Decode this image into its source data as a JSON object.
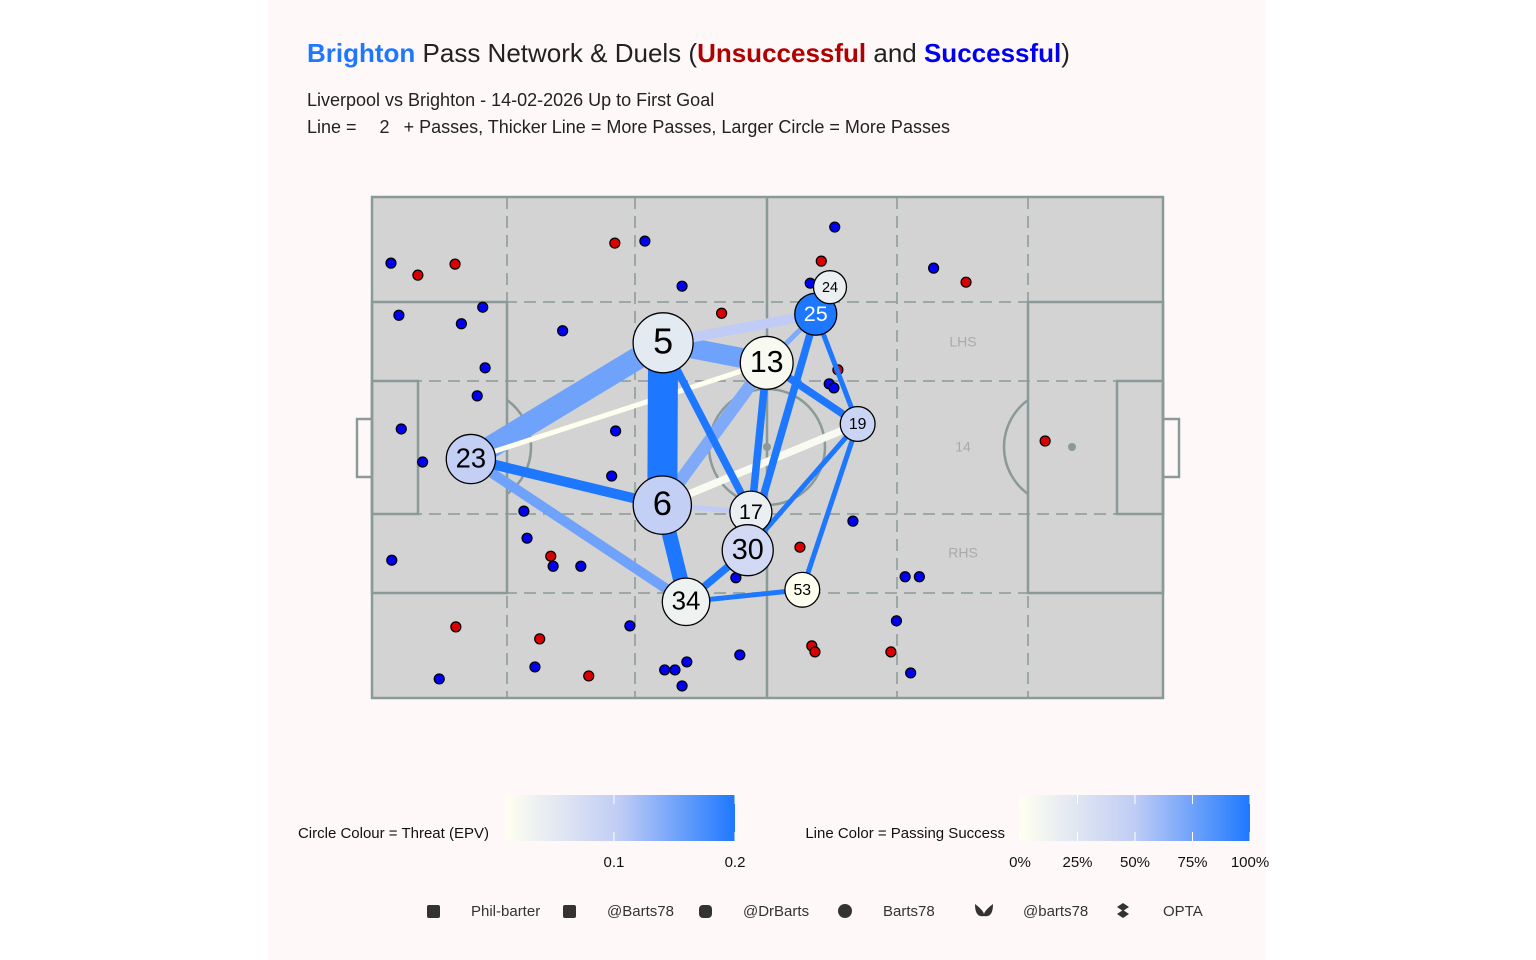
{
  "chart_data": {
    "type": "pass-network",
    "title": {
      "team": "Brighton",
      "team_color": "#1e78ff",
      "part1": " Pass Network & Duels (",
      "part2": " and ",
      "part3": ")"
    },
    "subtitle": "Liverpool vs Brighton - 14-02-2026 Up to First Goal",
    "note": {
      "before": "Line = ",
      "min_passes": 2,
      "after": "+ Passes, Thicker Line = More Passes, Larger Circle = More Passes"
    },
    "xlim": [
      0,
      100
    ],
    "ylim": [
      0,
      100
    ],
    "pitch_labels": [
      "LHS",
      "14",
      "RHS"
    ],
    "series": [
      {
        "name": "Unsuccessful",
        "color": "#d80000",
        "title_color": "#b00000",
        "x": [
          5.8,
          10.5,
          30.7,
          44.2,
          56.8,
          75.1,
          58.9,
          85.1,
          22.6,
          54.1,
          10.6,
          21.2,
          27.4,
          55.6,
          56.0,
          65.6
        ],
        "y": [
          15.6,
          13.4,
          9.2,
          23.2,
          12.8,
          17.0,
          34.5,
          48.7,
          71.7,
          69.9,
          85.8,
          88.2,
          95.6,
          89.6,
          90.8,
          90.8
        ]
      },
      {
        "name": "Successful",
        "color": "#0000ee",
        "title_color": "#0000ee",
        "x": [
          2.4,
          3.4,
          11.3,
          14.0,
          24.1,
          34.5,
          39.2,
          58.5,
          55.4,
          71.0,
          14.3,
          13.3,
          3.7,
          6.4,
          30.8,
          30.3,
          57.8,
          58.4,
          19.2,
          19.6,
          22.9,
          26.4,
          2.5,
          60.8,
          46.0,
          67.4,
          69.2,
          32.6,
          66.3,
          46.5,
          20.6,
          37.0,
          38.3,
          39.8,
          39.2,
          68.1,
          8.5
        ],
        "y": [
          13.2,
          23.6,
          25.3,
          22.0,
          26.7,
          8.8,
          17.8,
          6.0,
          17.2,
          14.2,
          34.1,
          39.7,
          46.3,
          52.9,
          46.7,
          55.7,
          37.3,
          38.1,
          62.7,
          68.1,
          73.7,
          73.7,
          72.5,
          64.7,
          76.0,
          75.8,
          75.8,
          85.6,
          84.6,
          91.4,
          93.8,
          94.4,
          94.4,
          92.8,
          97.6,
          95.0,
          96.2
        ]
      }
    ],
    "nodes": [
      {
        "label": "5",
        "x": 36.8,
        "y": 29.1,
        "passes": 40,
        "epv": 0.05
      },
      {
        "label": "13",
        "x": 49.9,
        "y": 33.1,
        "passes": 32,
        "epv": 0.02
      },
      {
        "label": "25",
        "x": 56.1,
        "y": 23.4,
        "passes": 20,
        "epv": 0.2
      },
      {
        "label": "24",
        "x": 57.9,
        "y": 18.0,
        "passes": 10,
        "epv": 0.04
      },
      {
        "label": "19",
        "x": 61.4,
        "y": 45.3,
        "passes": 12,
        "epv": 0.09
      },
      {
        "label": "23",
        "x": 12.5,
        "y": 52.3,
        "passes": 28,
        "epv": 0.1
      },
      {
        "label": "6",
        "x": 36.7,
        "y": 61.5,
        "passes": 38,
        "epv": 0.1
      },
      {
        "label": "17",
        "x": 47.9,
        "y": 62.9,
        "passes": 20,
        "epv": 0.04
      },
      {
        "label": "30",
        "x": 47.5,
        "y": 70.5,
        "passes": 30,
        "epv": 0.08
      },
      {
        "label": "34",
        "x": 39.7,
        "y": 80.8,
        "passes": 26,
        "epv": 0.035
      },
      {
        "label": "53",
        "x": 54.4,
        "y": 78.4,
        "passes": 12,
        "epv": 0.01
      }
    ],
    "edges": [
      {
        "from": "5",
        "to": "23",
        "passes": 9,
        "success": 75
      },
      {
        "from": "5",
        "to": "13",
        "passes": 8,
        "success": 75
      },
      {
        "from": "5",
        "to": "25",
        "passes": 4,
        "success": 50
      },
      {
        "from": "23",
        "to": "13",
        "passes": 2,
        "success": 0
      },
      {
        "from": "6",
        "to": "19",
        "passes": 3,
        "success": 5
      },
      {
        "from": "23",
        "to": "34",
        "passes": 4,
        "success": 75
      },
      {
        "from": "6",
        "to": "13",
        "passes": 5,
        "success": 70
      },
      {
        "from": "6",
        "to": "17",
        "passes": 2,
        "success": 50
      },
      {
        "from": "13",
        "to": "25",
        "passes": 2,
        "success": 70
      },
      {
        "from": "25",
        "to": "24",
        "passes": 2,
        "success": 50
      },
      {
        "from": "17",
        "to": "30",
        "passes": 2,
        "success": 50
      },
      {
        "from": "5",
        "to": "6",
        "passes": 12,
        "success": 100
      },
      {
        "from": "5",
        "to": "17",
        "passes": 3,
        "success": 100
      },
      {
        "from": "23",
        "to": "6",
        "passes": 4,
        "success": 100
      },
      {
        "from": "6",
        "to": "34",
        "passes": 6,
        "success": 100
      },
      {
        "from": "13",
        "to": "30",
        "passes": 3,
        "success": 100
      },
      {
        "from": "13",
        "to": "19",
        "passes": 3,
        "success": 100
      },
      {
        "from": "25",
        "to": "30",
        "passes": 3,
        "success": 100
      },
      {
        "from": "25",
        "to": "19",
        "passes": 2,
        "success": 100
      },
      {
        "from": "19",
        "to": "30",
        "passes": 2,
        "success": 100
      },
      {
        "from": "19",
        "to": "53",
        "passes": 2,
        "success": 100
      },
      {
        "from": "30",
        "to": "34",
        "passes": 3,
        "success": 100
      },
      {
        "from": "34",
        "to": "53",
        "passes": 2,
        "success": 100
      }
    ],
    "epv_legend": {
      "label": "Circle Colour = Threat (EPV)",
      "lim": [
        0.01,
        0.2
      ],
      "ticks": [
        0.1,
        0.2
      ],
      "colors": [
        "#fffff0",
        "#c0ccf5",
        "#1e78ff"
      ]
    },
    "success_legend": {
      "label": "Line Color = Passing Success",
      "lim": [
        0,
        100
      ],
      "ticks": [
        {
          "value": 0,
          "label": "0%"
        },
        {
          "value": 25,
          "label": "25%"
        },
        {
          "value": 50,
          "label": "50%"
        },
        {
          "value": 75,
          "label": "75%"
        },
        {
          "value": 100,
          "label": "100%"
        }
      ],
      "colors": [
        "#fffff0",
        "#c0ccf5",
        "#1e78ff"
      ]
    },
    "footer": [
      "Phil-barter",
      "@Barts78",
      "@DrBarts",
      "Barts78",
      "@barts78",
      "OPTA"
    ]
  }
}
